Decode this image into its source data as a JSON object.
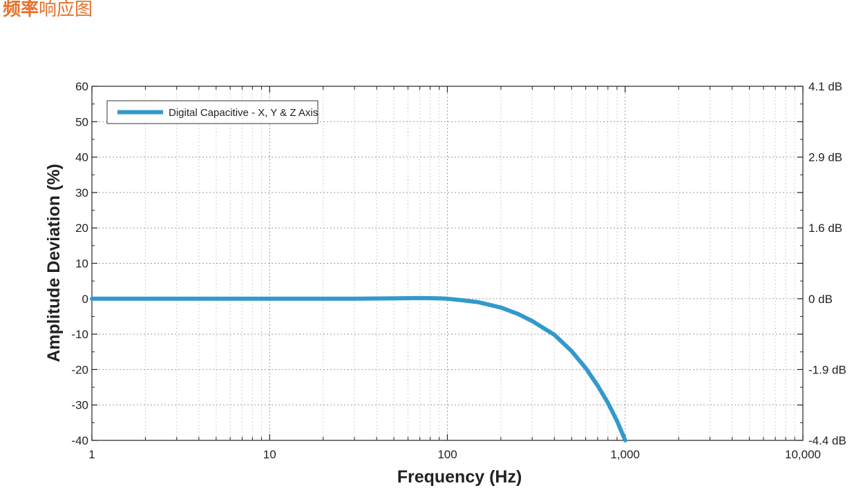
{
  "header": {
    "title_highlight": "频率",
    "title_rest": "响应图"
  },
  "colors": {
    "title": "#e8702a",
    "series": "#3399cc",
    "grid": "#9a9a9a",
    "axis": "#222222"
  },
  "chart_data": {
    "type": "line",
    "title": "",
    "xlabel": "Frequency (Hz)",
    "ylabel": "Amplitude Deviation (%)",
    "xscale": "log",
    "xlim": [
      1,
      10000
    ],
    "ylim": [
      -40,
      60
    ],
    "grid": true,
    "legend_position": "top-left",
    "x_ticks": [
      {
        "value": 1,
        "label": "1"
      },
      {
        "value": 10,
        "label": "10"
      },
      {
        "value": 100,
        "label": "100"
      },
      {
        "value": 1000,
        "label": "1,000"
      },
      {
        "value": 10000,
        "label": "10,000"
      }
    ],
    "y_ticks": [
      {
        "value": 60,
        "label": "60"
      },
      {
        "value": 50,
        "label": "50"
      },
      {
        "value": 40,
        "label": "40"
      },
      {
        "value": 30,
        "label": "30"
      },
      {
        "value": 20,
        "label": "20"
      },
      {
        "value": 10,
        "label": "10"
      },
      {
        "value": 0,
        "label": "0"
      },
      {
        "value": -10,
        "label": "-10"
      },
      {
        "value": -20,
        "label": "-20"
      },
      {
        "value": -30,
        "label": "-30"
      },
      {
        "value": -40,
        "label": "-40"
      }
    ],
    "y2_ticks": [
      {
        "value": 60,
        "label": "4.1 dB"
      },
      {
        "value": 40,
        "label": "2.9 dB"
      },
      {
        "value": 20,
        "label": "1.6 dB"
      },
      {
        "value": 0,
        "label": "0 dB"
      },
      {
        "value": -20,
        "label": "-1.9 dB"
      },
      {
        "value": -40,
        "label": "-4.4 dB"
      }
    ],
    "series": [
      {
        "name": "Digital Capacitive - X, Y & Z Axis",
        "x": [
          1,
          2,
          5,
          10,
          20,
          30,
          50,
          70,
          90,
          100,
          120,
          150,
          200,
          250,
          300,
          400,
          500,
          600,
          700,
          800,
          900,
          1000
        ],
        "y": [
          0,
          0,
          0,
          0,
          0,
          0,
          0.1,
          0.2,
          0.1,
          0,
          -0.4,
          -1.0,
          -2.5,
          -4.3,
          -6.3,
          -10.2,
          -14.8,
          -19.6,
          -24.5,
          -29.4,
          -34.5,
          -40
        ]
      }
    ]
  }
}
